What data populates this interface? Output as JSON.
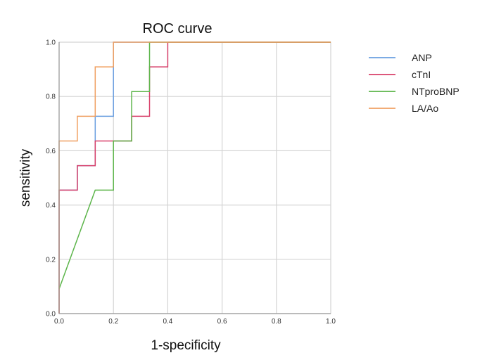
{
  "chart_data": {
    "type": "line",
    "title": "ROC curve",
    "xlabel": "1-specificity",
    "ylabel": "sensitivity",
    "xlim": [
      0.0,
      1.0
    ],
    "ylim": [
      0.0,
      1.0
    ],
    "xticks": [
      "0.0",
      "0.2",
      "0.4",
      "0.6",
      "0.8",
      "1.0"
    ],
    "yticks": [
      "0.0",
      "0.2",
      "0.4",
      "0.6",
      "0.8",
      "1.0"
    ],
    "grid": true,
    "legend_position": "right",
    "series": [
      {
        "name": "ANP",
        "color": "#6a9fe0",
        "points": [
          [
            0,
            0
          ],
          [
            0,
            0.455
          ],
          [
            0.067,
            0.455
          ],
          [
            0.067,
            0.545
          ],
          [
            0.133,
            0.545
          ],
          [
            0.133,
            0.727
          ],
          [
            0.2,
            0.727
          ],
          [
            0.2,
            1.0
          ],
          [
            1.0,
            1.0
          ]
        ]
      },
      {
        "name": "cTnI",
        "color": "#d8406a",
        "points": [
          [
            0,
            0
          ],
          [
            0,
            0.455
          ],
          [
            0.067,
            0.455
          ],
          [
            0.067,
            0.545
          ],
          [
            0.133,
            0.545
          ],
          [
            0.133,
            0.636
          ],
          [
            0.267,
            0.636
          ],
          [
            0.267,
            0.727
          ],
          [
            0.333,
            0.727
          ],
          [
            0.333,
            0.909
          ],
          [
            0.4,
            0.909
          ],
          [
            0.4,
            1.0
          ],
          [
            1.0,
            1.0
          ]
        ]
      },
      {
        "name": "NTproBNP",
        "color": "#5cb54a",
        "points": [
          [
            0,
            0.091
          ],
          [
            0.133,
            0.455
          ],
          [
            0.2,
            0.455
          ],
          [
            0.2,
            0.636
          ],
          [
            0.267,
            0.636
          ],
          [
            0.267,
            0.818
          ],
          [
            0.333,
            0.818
          ],
          [
            0.333,
            1.0
          ],
          [
            1.0,
            1.0
          ]
        ]
      },
      {
        "name": "LA/Ao",
        "color": "#f0a062",
        "points": [
          [
            0,
            0
          ],
          [
            0,
            0.636
          ],
          [
            0.067,
            0.636
          ],
          [
            0.067,
            0.727
          ],
          [
            0.133,
            0.727
          ],
          [
            0.133,
            0.909
          ],
          [
            0.2,
            0.909
          ],
          [
            0.2,
            1.0
          ],
          [
            1.0,
            1.0
          ]
        ]
      }
    ]
  }
}
